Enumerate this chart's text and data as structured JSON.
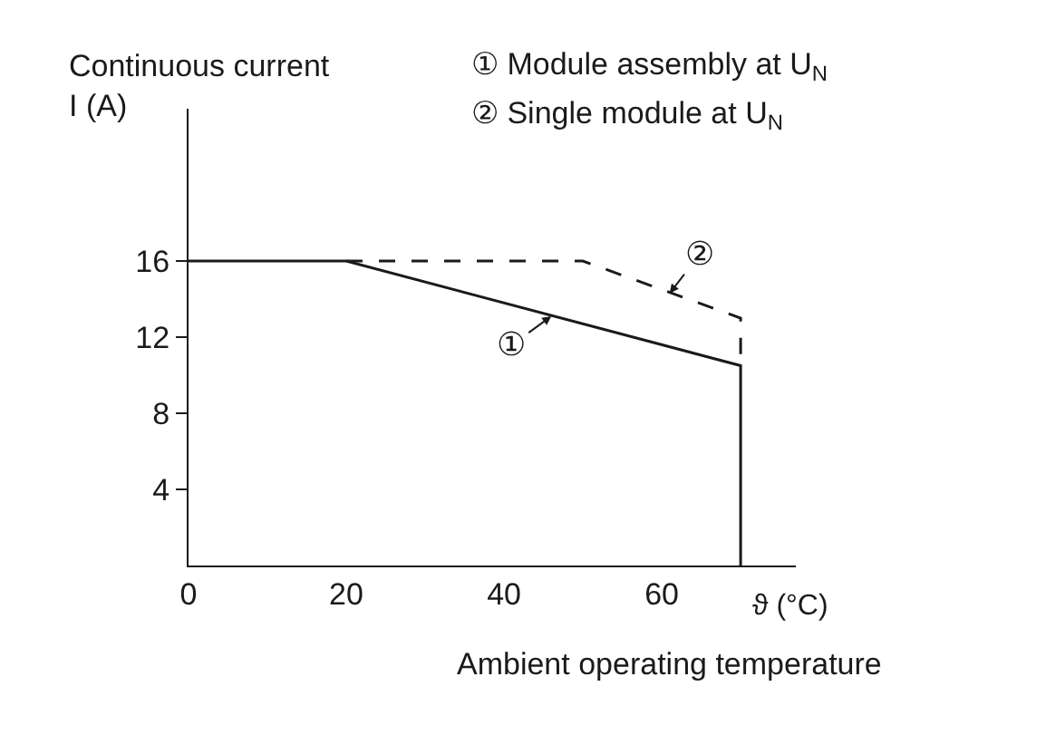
{
  "chart_data": {
    "type": "line",
    "xlabel": "Ambient operating temperature",
    "ylabel": "Continuous current\nI (A)",
    "series": [
      {
        "color": "#1a1a1a",
        "line_style": "solid",
        "x": [
          0,
          20,
          70,
          70
        ],
        "values": [
          16,
          16,
          10.5,
          0
        ]
      },
      {
        "color": "#1a1a1a",
        "line_style": "dashed",
        "x": [
          20,
          50,
          70,
          70
        ],
        "values": [
          16,
          16,
          13,
          10.5
        ]
      }
    ],
    "xlim": [
      0,
      77
    ],
    "ylim": [
      0,
      24
    ],
    "xticks": [
      0,
      20,
      40,
      60
    ],
    "yticks": [
      4,
      8,
      12,
      16
    ],
    "grid": false,
    "legend": false,
    "marker": "none",
    "annotations": [
      {
        "text": "①",
        "x": 46,
        "y": 13.1
      },
      {
        "text": "②",
        "x": 61,
        "y": 14.3
      },
      "① Module assembly at U$_{N}$",
      "② Single module at U$_{N}$",
      "ϑ (°C)"
    ]
  }
}
